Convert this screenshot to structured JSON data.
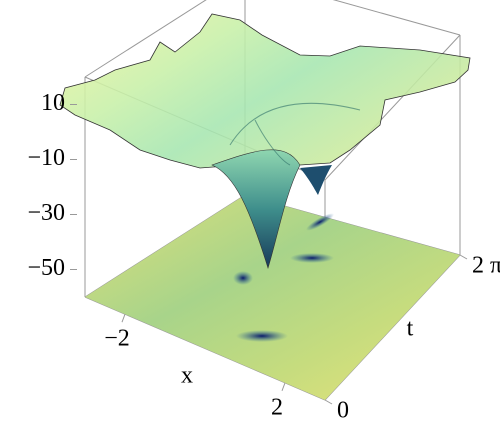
{
  "chart_data": {
    "type": "surface",
    "xlabel": "x",
    "ylabel": "t",
    "xlim": [
      -3,
      3
    ],
    "xticks": [
      {
        "value": -2,
        "label": "−2"
      },
      2
    ],
    "ylim": [
      0,
      6.283
    ],
    "yticks": [
      0,
      {
        "value": 6.283,
        "label": "2 π"
      }
    ],
    "zlim": [
      -60,
      20
    ],
    "zticks": [
      {
        "value": 10,
        "label": "10"
      },
      {
        "value": -10,
        "label": "−10"
      },
      {
        "value": -30,
        "label": "−30"
      },
      {
        "value": -50,
        "label": "−50"
      }
    ]
  }
}
